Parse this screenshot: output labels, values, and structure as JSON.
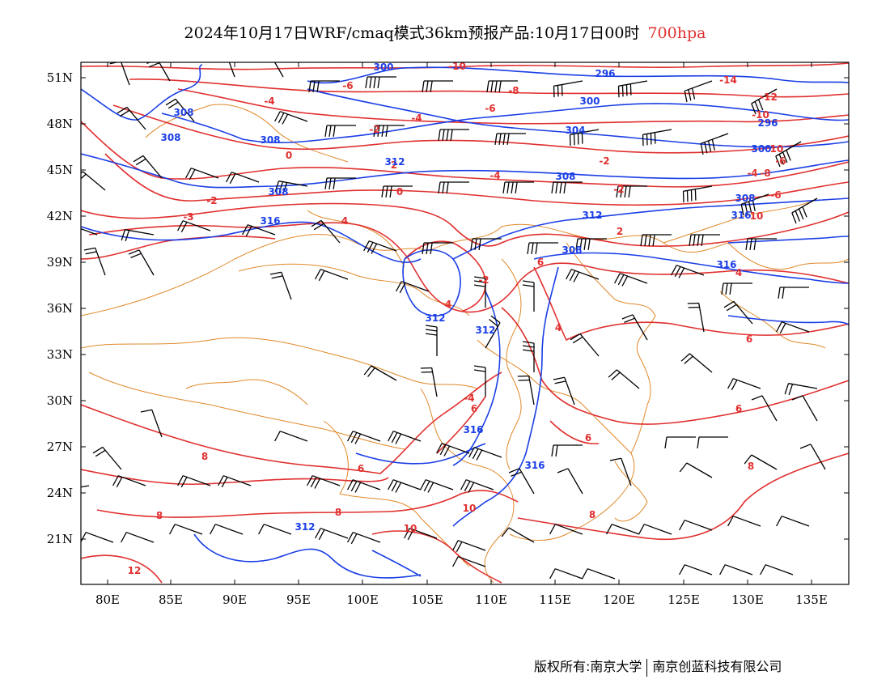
{
  "title": {
    "main": "2024年10月17日WRF/cmaq模式36km预报产品:10月17日00时",
    "level": "700hpa"
  },
  "colors": {
    "temperature": "#e0302f",
    "height": "#1a3ee6",
    "boundary": "#e0892a",
    "barb": "#000000"
  },
  "axes": {
    "lon_labels": [
      "80E",
      "85E",
      "90E",
      "95E",
      "100E",
      "105E",
      "110E",
      "115E",
      "120E",
      "125E",
      "130E",
      "135E"
    ],
    "lat_labels": [
      "51N",
      "48N",
      "45N",
      "42N",
      "39N",
      "36N",
      "33N",
      "30N",
      "27N",
      "24N",
      "21N"
    ]
  },
  "temperature_labels": [
    "-10",
    "-6",
    "-8",
    "-4",
    "-6",
    "-14",
    "-12",
    "-10",
    "-6",
    "-2",
    "-4",
    "0",
    "-2",
    "-8",
    "-4",
    "-6",
    "-4",
    "-3",
    "-2",
    "0",
    "-2",
    "2",
    "4",
    "2",
    "-2",
    "4",
    "6",
    "4",
    "4",
    "6",
    "-4",
    "6",
    "6",
    "6",
    "8",
    "6",
    "8",
    "8",
    "8",
    "8",
    "10",
    "10",
    "12",
    "10",
    "10",
    "12"
  ],
  "height_labels": [
    "300",
    "296",
    "308",
    "308",
    "296",
    "300",
    "304",
    "300",
    "308",
    "312",
    "308",
    "308",
    "308",
    "312",
    "316",
    "316",
    "308",
    "312",
    "312",
    "316",
    "316",
    "316",
    "312"
  ],
  "footer": {
    "left": "版权所有:南京大学",
    "right": "南京创蓝科技有限公司"
  }
}
